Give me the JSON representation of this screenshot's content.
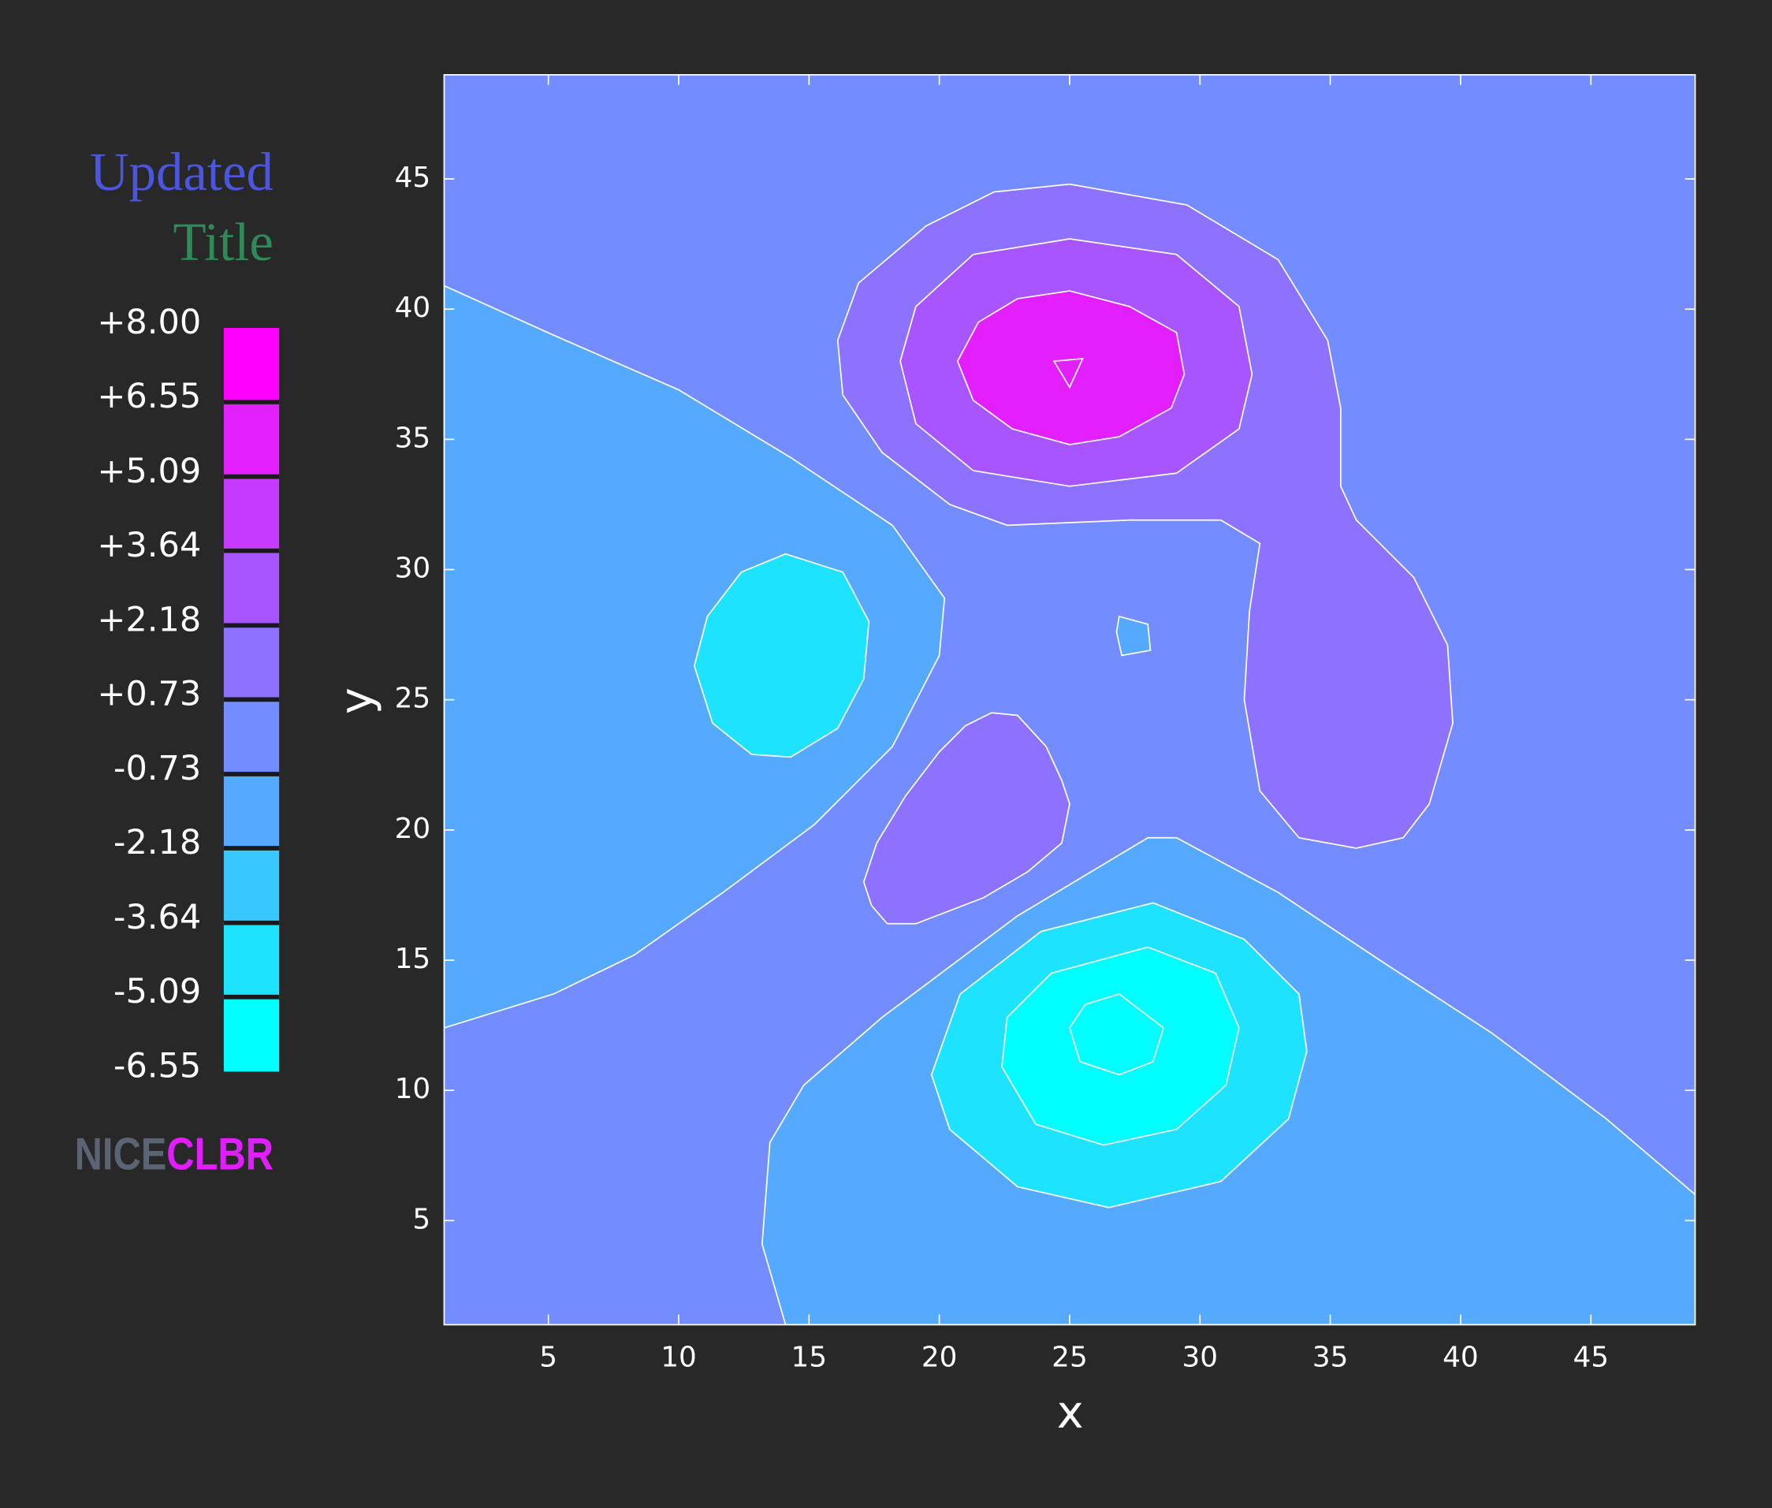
{
  "chart_data": {
    "type": "contour",
    "title_lines": [
      "Updated",
      "Title"
    ],
    "title_colors": [
      "#4a55e0",
      "#2e8b57"
    ],
    "logo": [
      "NICE",
      "CLBR"
    ],
    "logo_colors": [
      "#5a6472",
      "#e01eff"
    ],
    "x_label": "x",
    "y_label": "y",
    "xlim": [
      1,
      49
    ],
    "ylim": [
      1,
      49
    ],
    "xticks": [
      5,
      10,
      15,
      20,
      25,
      30,
      35,
      40,
      45
    ],
    "yticks": [
      5,
      10,
      15,
      20,
      25,
      30,
      35,
      40,
      45
    ],
    "colorbar": {
      "ticks": [
        {
          "value": -6.55,
          "label": "-6.55"
        },
        {
          "value": -5.09,
          "label": "-5.09"
        },
        {
          "value": -3.64,
          "label": "-3.64"
        },
        {
          "value": -2.18,
          "label": "-2.18"
        },
        {
          "value": -0.73,
          "label": "-0.73"
        },
        {
          "value": 0.73,
          "label": "+0.73"
        },
        {
          "value": 2.18,
          "label": "+2.18"
        },
        {
          "value": 3.64,
          "label": "+3.64"
        },
        {
          "value": 5.09,
          "label": "+5.09"
        },
        {
          "value": 6.55,
          "label": "+6.55"
        },
        {
          "value": 8.0,
          "label": "+8.00"
        }
      ],
      "colors": [
        "#00ffff",
        "#1ee3ff",
        "#38c8ff",
        "#55aaff",
        "#738cff",
        "#8c72ff",
        "#a855ff",
        "#c63aff",
        "#e31eff",
        "#ff00ff"
      ]
    },
    "background_bin": 4,
    "regions": [
      {
        "bin": 3,
        "x": [
          1,
          5.2,
          10,
          14.3,
          18.2,
          20.2,
          20,
          18.2,
          15.2,
          11.7,
          8.3,
          5.2,
          1
        ],
        "y": [
          40.9,
          39,
          36.9,
          34.3,
          31.7,
          28.9,
          26.7,
          23.2,
          20.2,
          17.6,
          15.2,
          13.7,
          12.4
        ]
      },
      {
        "bin": 1,
        "x": [
          14.1,
          16.3,
          17.3,
          17.1,
          16.1,
          14.3,
          12.8,
          11.3,
          10.6,
          11.1,
          12.4
        ],
        "y": [
          30.6,
          29.9,
          28,
          25.8,
          23.9,
          22.8,
          22.9,
          24.1,
          26.3,
          28.2,
          29.9
        ]
      },
      {
        "bin": 3,
        "x": [
          14.1,
          13.2,
          13.5,
          14.8,
          17.8,
          23,
          28,
          29.1,
          33,
          36.9,
          41.2,
          45.6,
          49,
          49
        ],
        "y": [
          1,
          4.1,
          8,
          10.2,
          12.8,
          16.7,
          19.7,
          19.7,
          17.6,
          15,
          12.2,
          8.9,
          6,
          1
        ]
      },
      {
        "bin": 1,
        "x": [
          28.2,
          31.7,
          33.8,
          34.1,
          33.4,
          30.8,
          26.5,
          23,
          20.4,
          19.7,
          20.8,
          23.9
        ],
        "y": [
          17.2,
          15.8,
          13.7,
          11.5,
          8.9,
          6.5,
          5.5,
          6.3,
          8.5,
          10.6,
          13.7,
          16.1
        ]
      },
      {
        "bin": 0,
        "x": [
          28,
          30.6,
          31.5,
          31,
          29.1,
          26.3,
          23.7,
          22.4,
          22.6,
          24.3
        ],
        "y": [
          15.5,
          14.5,
          12.4,
          10.2,
          8.5,
          7.9,
          8.7,
          10.9,
          12.8,
          14.5
        ]
      },
      {
        "bin": 0,
        "x": [
          26.9,
          28.6,
          28.2,
          26.9,
          25.4,
          25,
          25.6
        ],
        "y": [
          13.7,
          12.4,
          11.1,
          10.6,
          11.1,
          12.4,
          13.3
        ]
      },
      {
        "bin": 5,
        "x": [
          25,
          29.5,
          33,
          34.9,
          35.4,
          35.4,
          36,
          38.2,
          39.5,
          39.7,
          38.8,
          37.8,
          36,
          33.8,
          32.3,
          31.7,
          31.9,
          32.3,
          30.8,
          27.3,
          22.6,
          20.4,
          17.8,
          16.3,
          16.1,
          16.9,
          19.5,
          22.1
        ],
        "y": [
          44.8,
          44,
          41.9,
          38.8,
          36.2,
          33.2,
          31.9,
          29.7,
          27.1,
          24.1,
          21,
          19.7,
          19.3,
          19.7,
          21.5,
          25,
          28.4,
          31,
          31.9,
          31.9,
          31.7,
          32.5,
          34.5,
          36.7,
          38.8,
          41,
          43.2,
          44.5
        ]
      },
      {
        "bin": 6,
        "x": [
          25,
          29.1,
          31.5,
          32,
          31.5,
          29.1,
          25,
          21.3,
          19.1,
          18.5,
          19.1,
          21.3
        ],
        "y": [
          42.7,
          42.1,
          40.1,
          37.5,
          35.4,
          33.7,
          33.2,
          33.8,
          35.6,
          38,
          40.1,
          42.1
        ]
      },
      {
        "bin": 8,
        "x": [
          25,
          27.3,
          29.1,
          29.4,
          28.9,
          26.9,
          25,
          22.8,
          21.3,
          20.7,
          21.5,
          23
        ],
        "y": [
          40.7,
          40.1,
          39.1,
          37.5,
          36.2,
          35.1,
          34.8,
          35.4,
          36.5,
          38,
          39.5,
          40.4
        ]
      },
      {
        "bin": 8,
        "x": [
          24.4,
          25.5,
          25
        ],
        "y": [
          38,
          38.1,
          37
        ]
      },
      {
        "bin": 5,
        "x": [
          22,
          23,
          24.1,
          24.7,
          25,
          24.7,
          23.4,
          21.7,
          19.1,
          18,
          17.4,
          17.1,
          17.6,
          18.7,
          20,
          21
        ],
        "y": [
          24.5,
          24.4,
          23.2,
          21.9,
          21,
          19.5,
          18.4,
          17.4,
          16.4,
          16.4,
          17.1,
          18,
          19.5,
          21.3,
          23,
          24
        ]
      },
      {
        "bin": 3,
        "x": [
          26.9,
          28,
          28.1,
          27,
          26.8
        ],
        "y": [
          28.2,
          27.9,
          26.9,
          26.7,
          27.6
        ]
      }
    ]
  }
}
